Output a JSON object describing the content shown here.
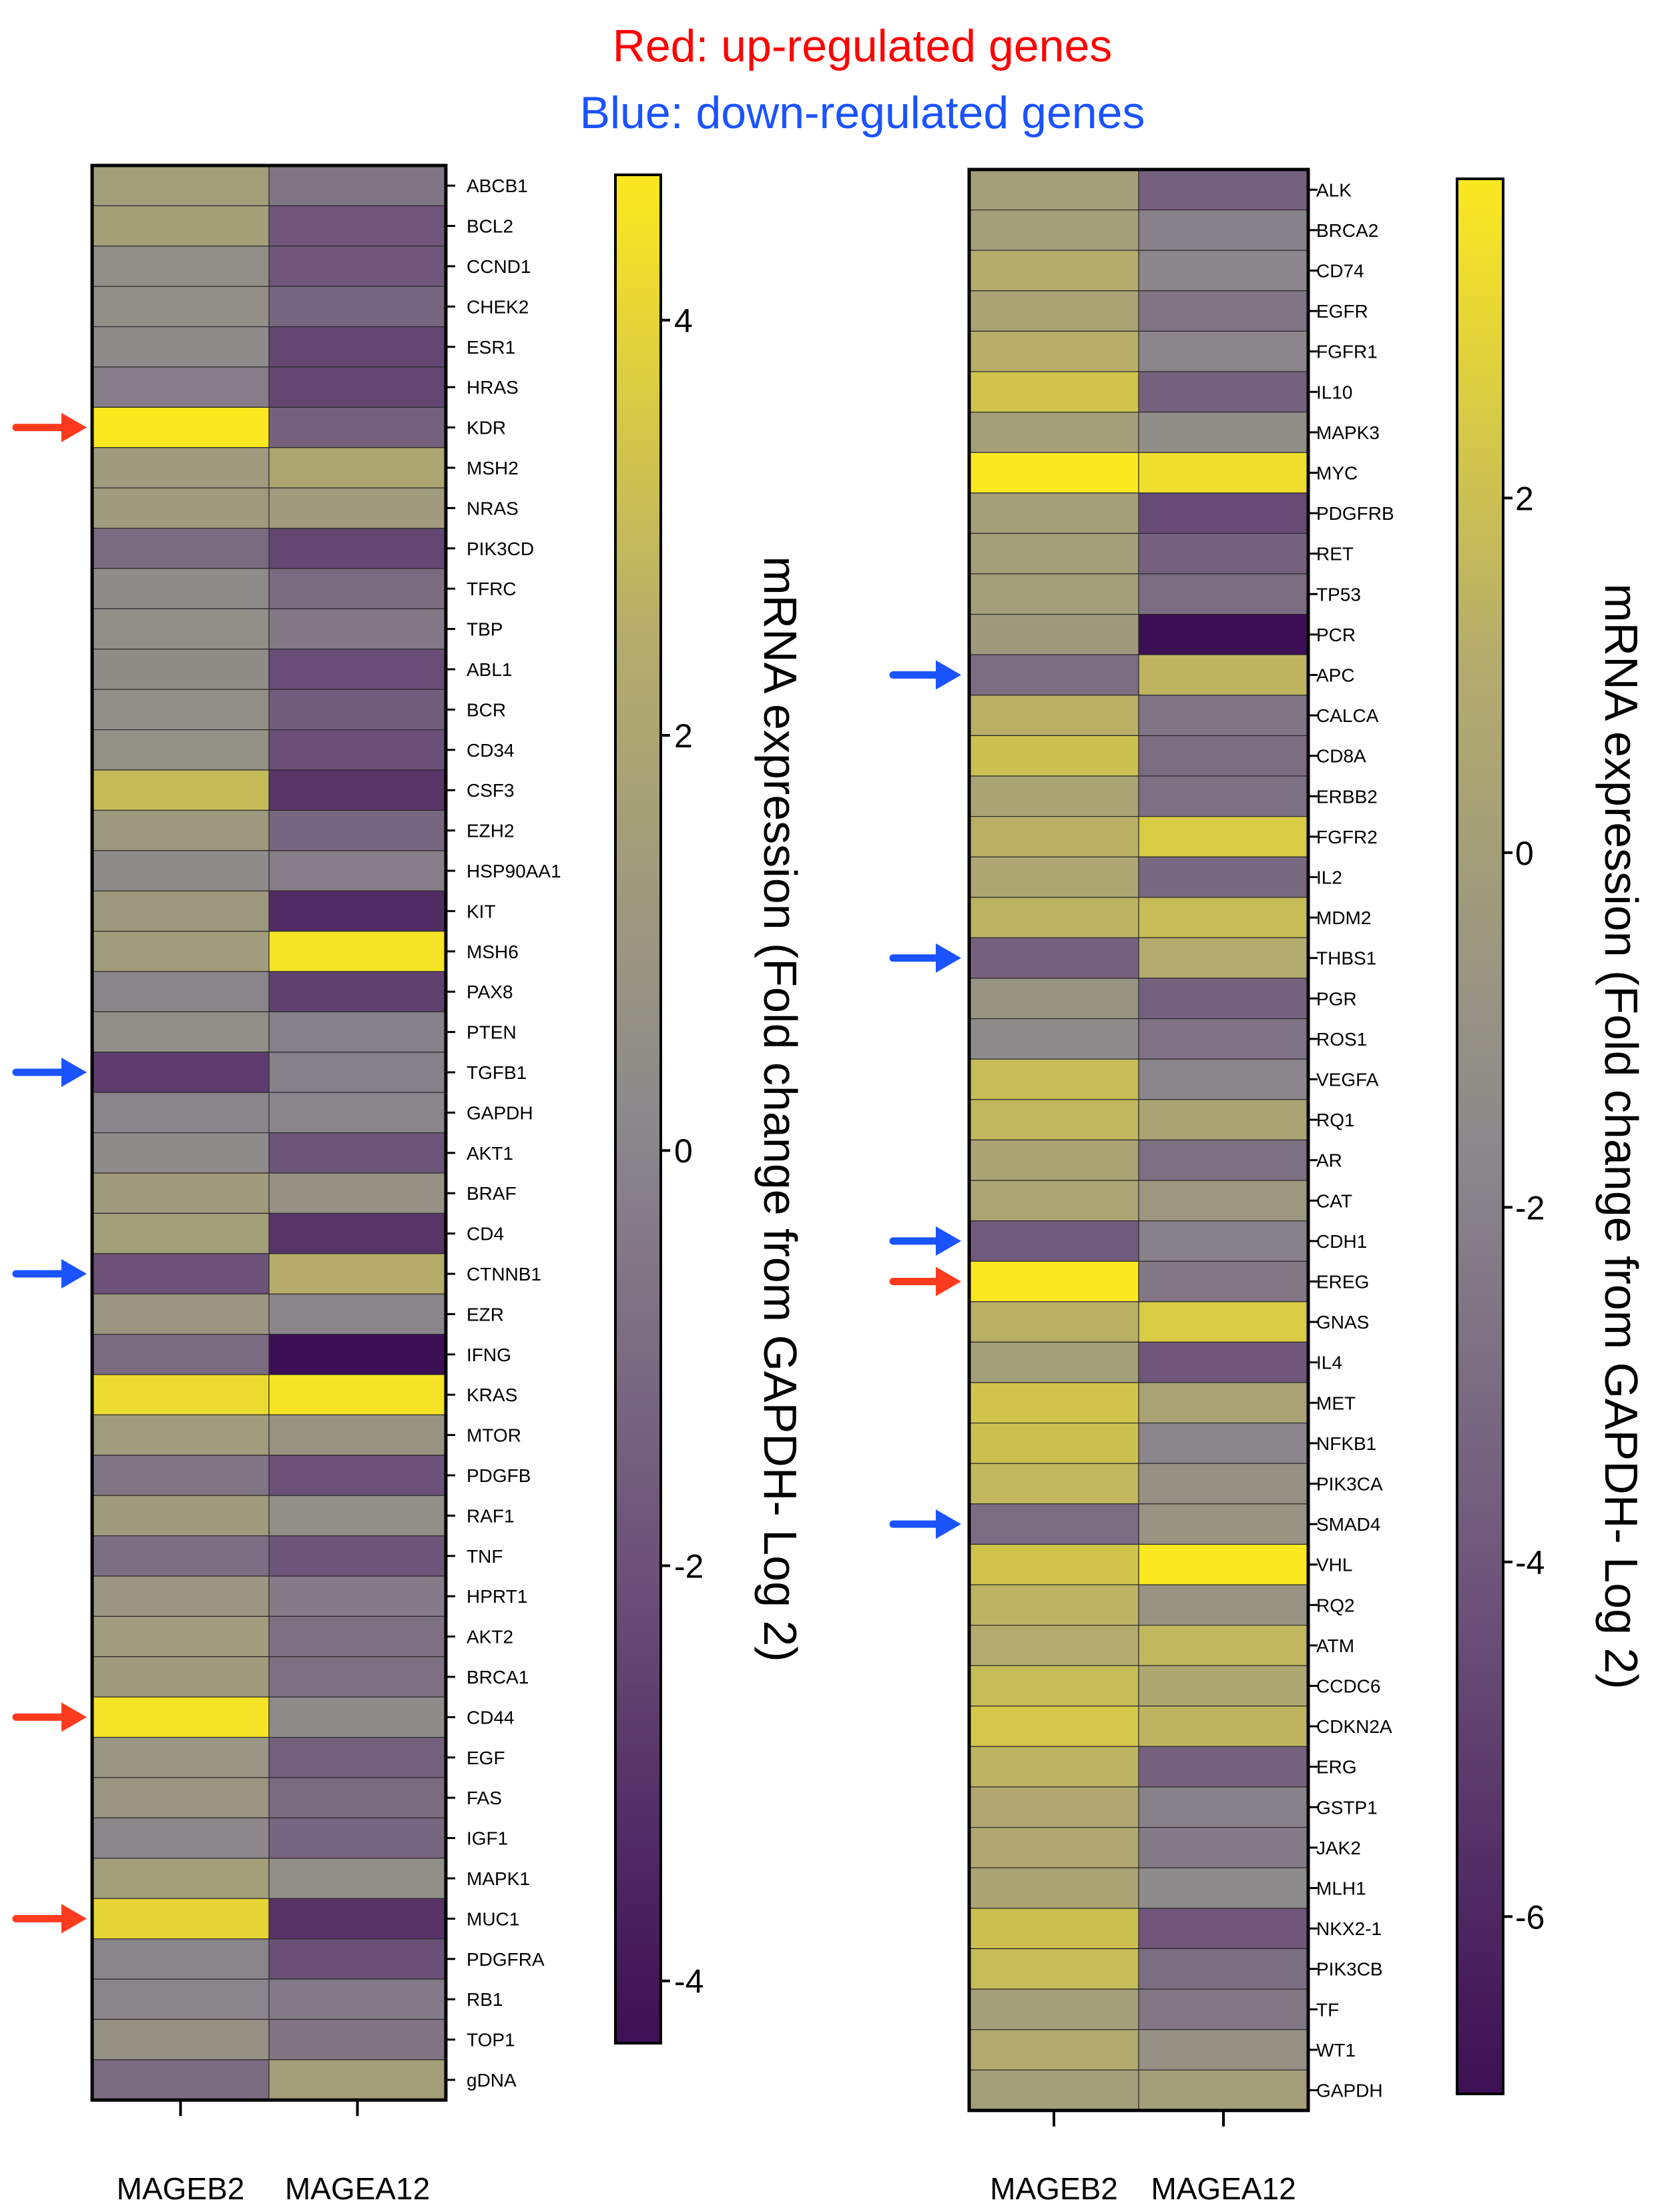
{
  "legend": {
    "up_label": "Red: up-regulated genes",
    "down_label": "Blue: down-regulated genes",
    "up_color": "#ff0000",
    "down_color": "#1a53ff"
  },
  "chart_data": [
    {
      "type": "heatmap",
      "columns": [
        "MAGEB2",
        "MAGEA12"
      ],
      "colorbar": {
        "label": "mRNA expression (Fold change from GAPDH- Log 2)",
        "range": [
          -4.3,
          4.7
        ],
        "ticks": [
          "4",
          "2",
          "0",
          "-2",
          "-4"
        ],
        "tick_values": [
          4,
          2,
          0,
          -2,
          -4
        ],
        "colormap": "cividis-like (dark purple → gray → yellow)"
      },
      "rows": [
        "ABCB1",
        "BCL2",
        "CCND1",
        "CHEK2",
        "ESR1",
        "HRAS",
        "KDR",
        "MSH2",
        "NRAS",
        "PIK3CD",
        "TFRC",
        "TBP",
        "ABL1",
        "BCR",
        "CD34",
        "CSF3",
        "EZH2",
        "HSP90AA1",
        "KIT",
        "MSH6",
        "PAX8",
        "PTEN",
        "TGFB1",
        "GAPDH",
        "AKT1",
        "BRAF",
        "CD4",
        "CTNNB1",
        "EZR",
        "IFNG",
        "KRAS",
        "MTOR",
        "PDGFB",
        "RAF1",
        "TNF",
        "HPRT1",
        "AKT2",
        "BRCA1",
        "CD44",
        "EGF",
        "FAS",
        "IGF1",
        "MAPK1",
        "MUC1",
        "PDGFRA",
        "RB1",
        "TOP1",
        "gDNA"
      ],
      "values": [
        [
          1.5,
          -0.6
        ],
        [
          1.6,
          -1.8
        ],
        [
          0.5,
          -1.8
        ],
        [
          0.5,
          -1.2
        ],
        [
          0.3,
          -2.4
        ],
        [
          -0.3,
          -2.4
        ],
        [
          4.7,
          -1.4
        ],
        [
          1.3,
          2.0
        ],
        [
          1.3,
          1.3
        ],
        [
          -1.0,
          -2.4
        ],
        [
          0.3,
          -1.0
        ],
        [
          0.5,
          -0.5
        ],
        [
          0.4,
          -2.2
        ],
        [
          0.5,
          -1.6
        ],
        [
          0.6,
          -2.1
        ],
        [
          3.0,
          -3.0
        ],
        [
          1.2,
          -1.2
        ],
        [
          0.3,
          -0.3
        ],
        [
          1.2,
          -3.3
        ],
        [
          1.4,
          4.5
        ],
        [
          0.0,
          -2.6
        ],
        [
          0.5,
          -0.2
        ],
        [
          -2.7,
          -0.2
        ],
        [
          0.0,
          0.0
        ],
        [
          0.3,
          -1.9
        ],
        [
          1.3,
          0.7
        ],
        [
          1.5,
          -3.0
        ],
        [
          -2.0,
          2.5
        ],
        [
          1.0,
          0.0
        ],
        [
          -1.0,
          -4.3
        ],
        [
          4.2,
          4.5
        ],
        [
          1.4,
          0.8
        ],
        [
          -0.6,
          -2.0
        ],
        [
          1.3,
          0.5
        ],
        [
          -0.9,
          -1.9
        ],
        [
          1.0,
          -0.4
        ],
        [
          1.4,
          -0.8
        ],
        [
          1.3,
          -0.8
        ],
        [
          4.5,
          0.3
        ],
        [
          0.9,
          -1.5
        ],
        [
          1.0,
          -1.0
        ],
        [
          0.1,
          -1.2
        ],
        [
          1.5,
          0.5
        ],
        [
          4.0,
          -3.1
        ],
        [
          0.0,
          -2.1
        ],
        [
          0.0,
          -0.4
        ],
        [
          0.7,
          -0.7
        ],
        [
          -1.0,
          1.5
        ]
      ],
      "arrows": [
        {
          "gene": "KDR",
          "direction": "up"
        },
        {
          "gene": "TGFB1",
          "direction": "down"
        },
        {
          "gene": "CTNNB1",
          "direction": "down"
        },
        {
          "gene": "CD44",
          "direction": "up"
        },
        {
          "gene": "MUC1",
          "direction": "up"
        }
      ]
    },
    {
      "type": "heatmap",
      "columns": [
        "MAGEB2",
        "MAGEA12"
      ],
      "colorbar": {
        "label": "mRNA expression (Fold change from GAPDH- Log 2)",
        "range": [
          -7.0,
          3.8
        ],
        "ticks": [
          "2",
          "0",
          "-2",
          "-4",
          "-6"
        ],
        "tick_values": [
          2,
          0,
          -2,
          -4,
          -6
        ],
        "colormap": "cividis-like (dark purple → gray → yellow)"
      },
      "rows": [
        "ALK",
        "BRCA2",
        "CD74",
        "EGFR",
        "FGFR1",
        "IL10",
        "MAPK3",
        "MYC",
        "PDGFRB",
        "RET",
        "TP53",
        "PCR",
        "APC",
        "CALCA",
        "CD8A",
        "ERBB2",
        "FGFR2",
        "IL2",
        "MDM2",
        "THBS1",
        "PGR",
        "ROS1",
        "VEGFA",
        "RQ1",
        "AR",
        "CAT",
        "CDH1",
        "EREG",
        "GNAS",
        "IL4",
        "MET",
        "NFKB1",
        "PIK3CA",
        "SMAD4",
        "VHL",
        "RQ2",
        "ATM",
        "CCDC6",
        "CDKN2A",
        "ERG",
        "GSTP1",
        "JAK2",
        "MLH1",
        "NKX2-1",
        "PIK3CB",
        "TF",
        "WT1",
        "GAPDH"
      ],
      "values": [
        [
          0.0,
          -3.5
        ],
        [
          0.0,
          -2.0
        ],
        [
          1.1,
          -1.8
        ],
        [
          0.4,
          -2.6
        ],
        [
          1.2,
          -1.8
        ],
        [
          2.2,
          -3.5
        ],
        [
          0.0,
          -1.3
        ],
        [
          3.8,
          3.3
        ],
        [
          0.0,
          -4.5
        ],
        [
          0.0,
          -3.5
        ],
        [
          0.0,
          -3.0
        ],
        [
          -0.3,
          -7.0
        ],
        [
          -3.0,
          1.5
        ],
        [
          1.3,
          -2.6
        ],
        [
          2.0,
          -3.0
        ],
        [
          0.4,
          -2.8
        ],
        [
          1.3,
          2.5
        ],
        [
          0.6,
          -3.2
        ],
        [
          1.4,
          1.8
        ],
        [
          -3.5,
          1.0
        ],
        [
          -0.8,
          -3.5
        ],
        [
          -1.5,
          -2.7
        ],
        [
          1.8,
          -1.8
        ],
        [
          1.6,
          0.4
        ],
        [
          0.4,
          -2.8
        ],
        [
          0.5,
          -0.6
        ],
        [
          -3.8,
          -2.0
        ],
        [
          3.8,
          -2.5
        ],
        [
          1.3,
          2.5
        ],
        [
          0.0,
          -4.0
        ],
        [
          2.2,
          0.3
        ],
        [
          2.0,
          -1.8
        ],
        [
          1.6,
          -1.0
        ],
        [
          -3.0,
          -0.8
        ],
        [
          2.2,
          3.8
        ],
        [
          1.4,
          -0.8
        ],
        [
          1.0,
          1.6
        ],
        [
          1.8,
          0.7
        ],
        [
          2.3,
          1.5
        ],
        [
          1.4,
          -3.5
        ],
        [
          0.8,
          -2.0
        ],
        [
          0.8,
          -2.3
        ],
        [
          0.4,
          -1.5
        ],
        [
          2.0,
          -4.0
        ],
        [
          1.8,
          -2.9
        ],
        [
          0.0,
          -2.5
        ],
        [
          0.9,
          -1.0
        ],
        [
          0.0,
          0.0
        ]
      ],
      "arrows": [
        {
          "gene": "APC",
          "direction": "down"
        },
        {
          "gene": "THBS1",
          "direction": "down"
        },
        {
          "gene": "CDH1",
          "direction": "down"
        },
        {
          "gene": "EREG",
          "direction": "up"
        },
        {
          "gene": "SMAD4",
          "direction": "down"
        }
      ]
    }
  ]
}
